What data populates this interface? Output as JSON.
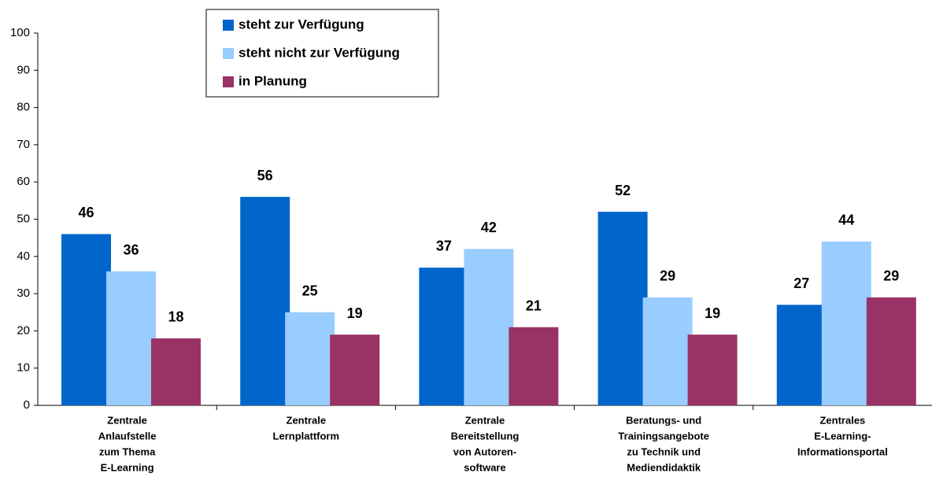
{
  "chart_data": {
    "type": "bar",
    "categories": [
      [
        "Zentrale",
        "Anlaufstelle",
        "zum Thema",
        "E-Learning"
      ],
      [
        "Zentrale",
        "Lernplattform"
      ],
      [
        "Zentrale",
        "Bereitstellung",
        "von Autoren-",
        "software"
      ],
      [
        "Beratungs- und",
        "Trainingsangebote",
        "zu Technik und",
        "Mediendidaktik"
      ],
      [
        "Zentrales",
        "E-Learning-",
        "Informationsportal"
      ]
    ],
    "series": [
      {
        "name": "steht zur Verfügung",
        "color": "#0066cc",
        "values": [
          46,
          56,
          37,
          52,
          27
        ]
      },
      {
        "name": "steht nicht zur Verfügung",
        "color": "#99ccff",
        "values": [
          36,
          25,
          42,
          29,
          44
        ]
      },
      {
        "name": "in Planung",
        "color": "#993366",
        "values": [
          18,
          19,
          21,
          19,
          29
        ]
      }
    ],
    "ylim": [
      0,
      100
    ],
    "yticks": [
      0,
      10,
      20,
      30,
      40,
      50,
      60,
      70,
      80,
      90,
      100
    ],
    "grid": false
  }
}
